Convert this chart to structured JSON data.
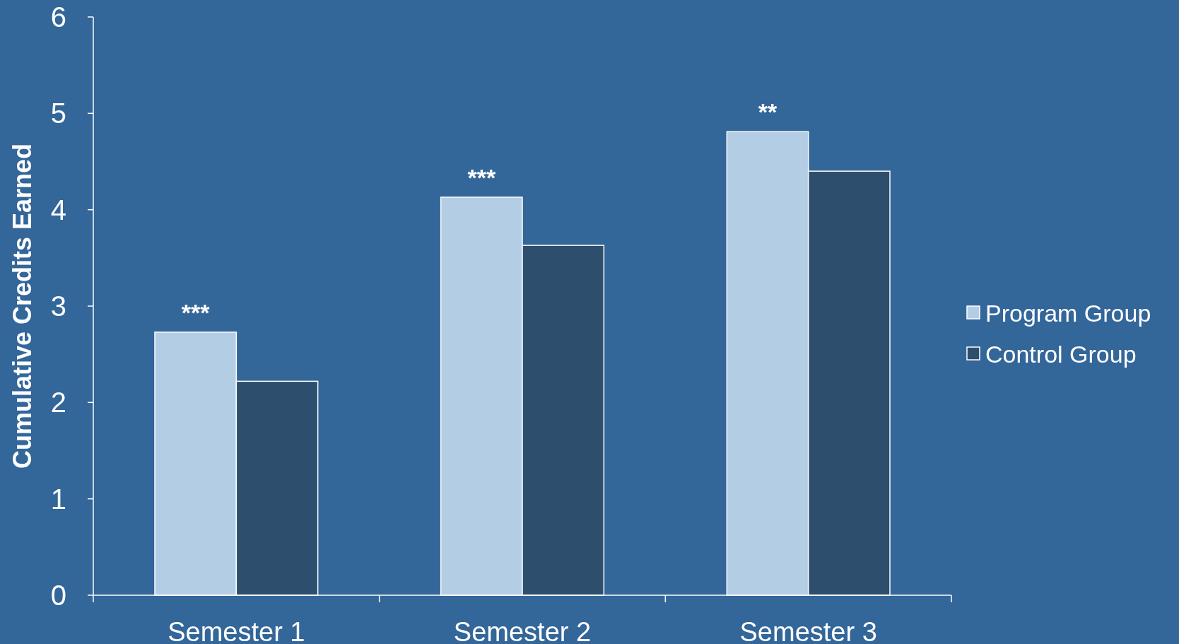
{
  "chart_data": {
    "type": "bar",
    "ylabel": "Cumulative Credits Earned",
    "categories": [
      "Semester 1",
      "Semester 2",
      "Semester 3"
    ],
    "series": [
      {
        "name": "Program Group",
        "color": "#b3cde4",
        "values": [
          2.73,
          4.13,
          4.81
        ]
      },
      {
        "name": "Control Group",
        "color": "#2e4e6e",
        "values": [
          2.22,
          3.63,
          4.4
        ]
      }
    ],
    "ylim": [
      0,
      6
    ],
    "yticks": [
      0,
      1,
      2,
      3,
      4,
      5,
      6
    ],
    "grid": false,
    "legend": "right",
    "annotations": [
      {
        "text": "***",
        "x": "Semester 1",
        "y": 2.73
      },
      {
        "text": "***",
        "x": "Semester 2",
        "y": 4.13
      },
      {
        "text": "**",
        "x": "Semester 3",
        "y": 4.81
      }
    ]
  }
}
